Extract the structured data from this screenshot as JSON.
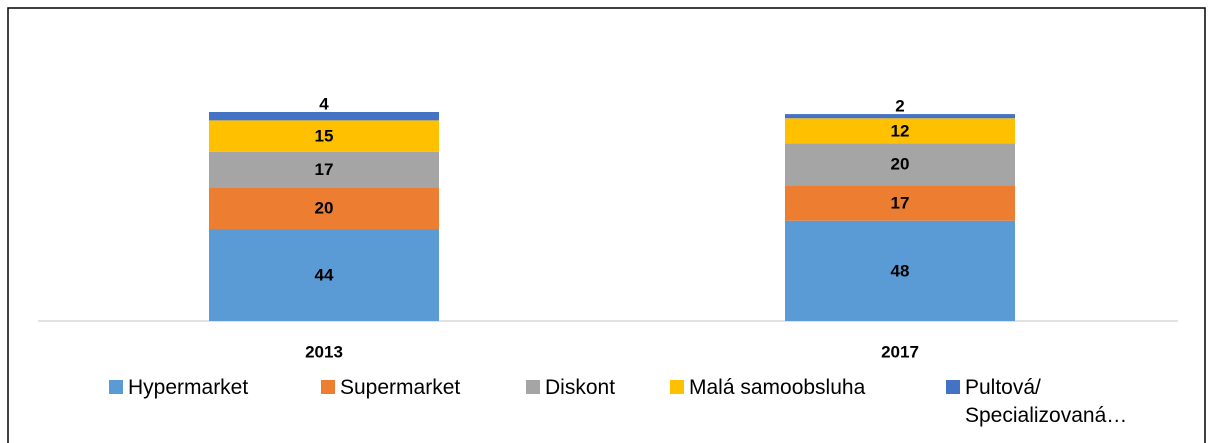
{
  "chart_data": {
    "type": "stacked_bar",
    "categories": [
      "2013",
      "2017"
    ],
    "series": [
      {
        "name": "Hypermarket",
        "color": "#5b9bd5",
        "values": [
          44,
          48
        ]
      },
      {
        "name": "Supermarket",
        "color": "#ed7d31",
        "values": [
          20,
          17
        ]
      },
      {
        "name": "Diskont",
        "color": "#a5a5a5",
        "values": [
          17,
          20
        ]
      },
      {
        "name": "Malá samoobsluha",
        "color": "#ffc000",
        "values": [
          15,
          12
        ]
      },
      {
        "name": "Pultová/ Specializovaná…",
        "color": "#4472c4",
        "values": [
          4,
          2
        ]
      }
    ],
    "ylim": [
      0,
      100
    ],
    "legend": "bottom"
  }
}
